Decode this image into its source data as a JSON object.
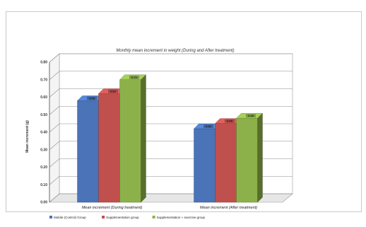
{
  "chart_data": {
    "type": "bar",
    "title": "Monthly mean increment in weight (During and After treatment)",
    "ylabel": "Mean increment (g)",
    "xlabel": "",
    "categories": [
      "Mean increment (During treatment)",
      "Mean increment (After treatment)"
    ],
    "ylim": [
      0,
      0.8
    ],
    "y_ticks": [
      "0.00",
      "0.10",
      "0.20",
      "0.30",
      "0.40",
      "0.50",
      "0.60",
      "0.70",
      "0.80"
    ],
    "grid": true,
    "three_d": true,
    "legend_position": "bottom",
    "series": [
      {
        "name": "Mobile (Control) Group",
        "color": "#4a73b8",
        "values": [
          0.58,
          0.42
        ]
      },
      {
        "name": "Supplementation group",
        "color": "#c0504d",
        "values": [
          0.62,
          0.45
        ]
      },
      {
        "name": "Supplementation + exercise group",
        "color": "#8cb14a",
        "values": [
          0.7,
          0.48
        ]
      }
    ],
    "value_labels": [
      [
        "0.58",
        "0.62",
        "0.70"
      ],
      [
        "0.42",
        "0.45",
        "0.48"
      ]
    ]
  }
}
